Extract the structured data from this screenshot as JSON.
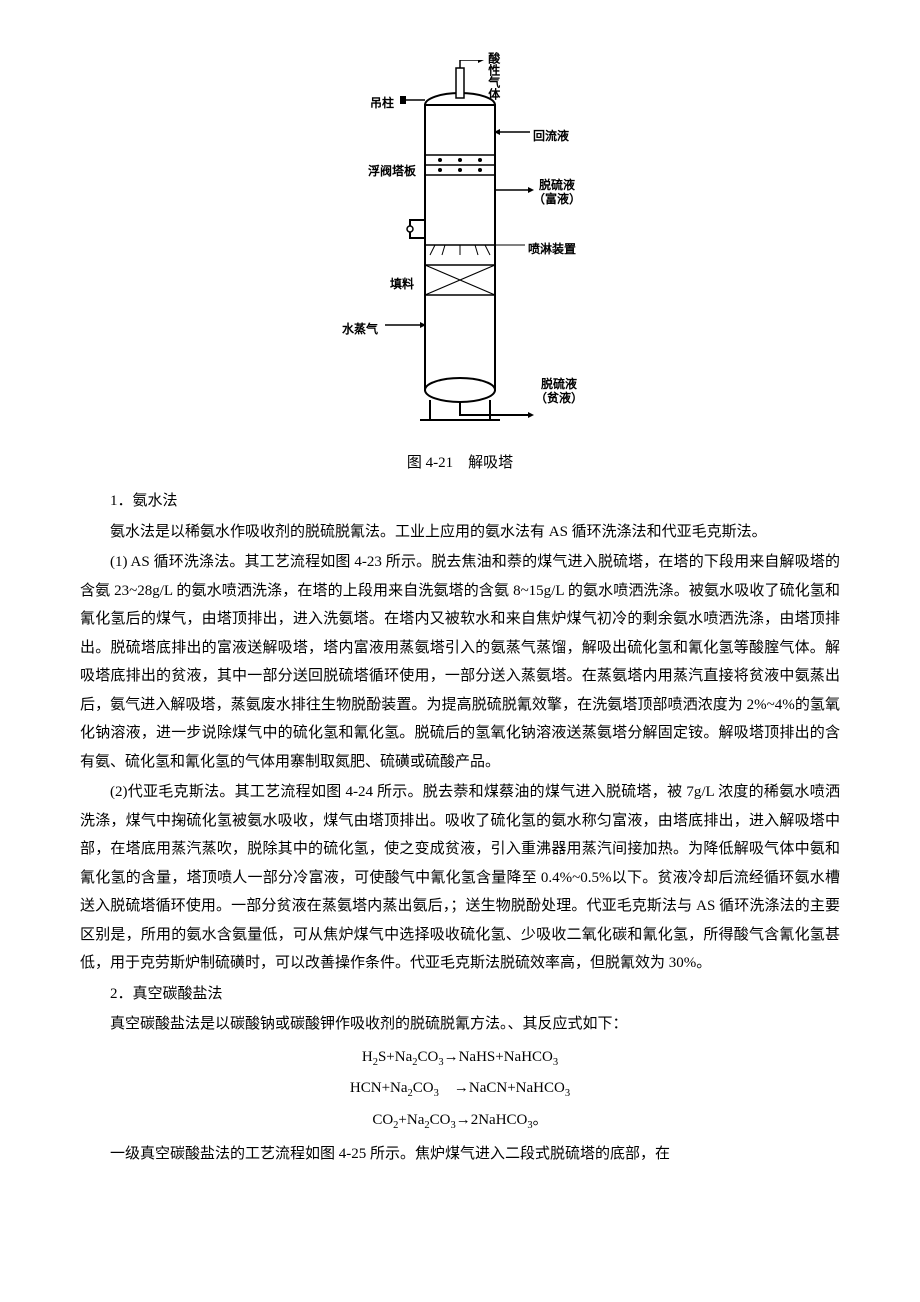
{
  "diagram": {
    "labels": {
      "top_right": "酸性气体",
      "hanger": "吊柱",
      "reflux": "回流液",
      "valve_tray": "浮阀塔板",
      "rich_out": "脱硫液（富液）",
      "spray": "喷淋装置",
      "packing": "填料",
      "steam": "水蒸气",
      "lean_out": "脱硫液（贫液）"
    },
    "caption": "图 4-21　解吸塔"
  },
  "s1_title": "1．氨水法",
  "s1_intro": "氨水法是以稀氨水作吸收剂的脱硫脱氰法。工业上应用的氨水法有 AS 循环洗涤法和代亚毛克斯法。",
  "s1_p1": "(1) AS 循环洗涤法。其工艺流程如图 4-23 所示。脱去焦油和萘的煤气进入脱硫塔，在塔的下段用来自解吸塔的含氨 23~28g/L 的氨水喷洒洗涤，在塔的上段用来自洗氨塔的含氨 8~15g/L 的氨水喷洒洗涤。被氨水吸收了硫化氢和氰化氢后的煤气，由塔顶排出，进入洗氨塔。在塔内又被软水和来自焦炉煤气初冷的剩余氨水喷洒洗涤，由塔顶排出。脱硫塔底排出的富液送解吸塔，塔内富液用蒸氨塔引入的氨蒸气蒸馏，解吸出硫化氢和氰化氢等酸腟气体。解吸塔底排出的贫液，其中一部分送回脱硫塔循环使用，一部分送入蒸氨塔。在蒸氨塔内用蒸汽直接将贫液中氨蒸出后，氨气进入解吸塔，蒸氨废水排往生物脱酚装置。为提高脱硫脱氰效擎，在洗氨塔顶部喷洒浓度为 2%~4%的氢氧化钠溶液，进一步说除煤气中的硫化氢和氰化氢。脱硫后的氢氧化钠溶液送蒸氨塔分解固定铵。解吸塔顶排出的含有氨、硫化氢和氰化氢的气体用寨制取氮肥、硫磺或硫酸产品。",
  "s1_p2": "(2)代亚毛克斯法。其工艺流程如图 4-24 所示。脱去萘和煤蔡油的煤气进入脱硫塔，被 7g/L 浓度的稀氨水喷洒洗涤，煤气中掬硫化氢被氨水吸收，煤气由塔顶排出。吸收了硫化氢的氨水称匀富液，由塔底排出，进入解吸塔中部，在塔底用蒸汽蒸吹，脱除其中的硫化氢，使之变成贫液，引入重沸器用蒸汽间接加热。为降低解吸气体中氨和氰化氢的含量，塔顶喷人一部分冷富液，可使酸气中氰化氢含量降至 0.4%~0.5%以下。贫液冷却后流经循环氨水槽送入脱硫塔循环使用。一部分贫液在蒸氨塔内蒸出氨后，；送生物脱酚处理。代亚毛克斯法与 AS 循环洗涤法的主要区别是，所用的氨水含氨量低，可从焦炉煤气中选择吸收硫化氢、少吸收二氧化碳和氰化氢，所得酸气含氰化氢甚低，用于克劳斯炉制硫磺时，可以改善操作条件。代亚毛克斯法脱硫效率高，但脱氰效为 30%。",
  "s2_title": "2．真空碳酸盐法",
  "s2_intro": "真空碳酸盐法是以碳酸钠或碳酸钾作吸收剂的脱硫脱氰方法。、其反应式如下：",
  "eq1": "H<sub>2</sub>S+Na<sub>2</sub>CO<sub>3</sub>→NaHS+NaHCO<sub>3</sub>",
  "eq2": "HCN+Na<sub>2</sub>CO<sub>3</sub>　→NaCN+NaHCO<sub>3</sub>",
  "eq3": "CO<sub>2</sub>+Na<sub>2</sub>CO<sub>3</sub>→2NaHCO<sub>3</sub>。",
  "s2_p1": "一级真空碳酸盐法的工艺流程如图 4-25 所示。焦炉煤气进入二段式脱硫塔的底部，在"
}
